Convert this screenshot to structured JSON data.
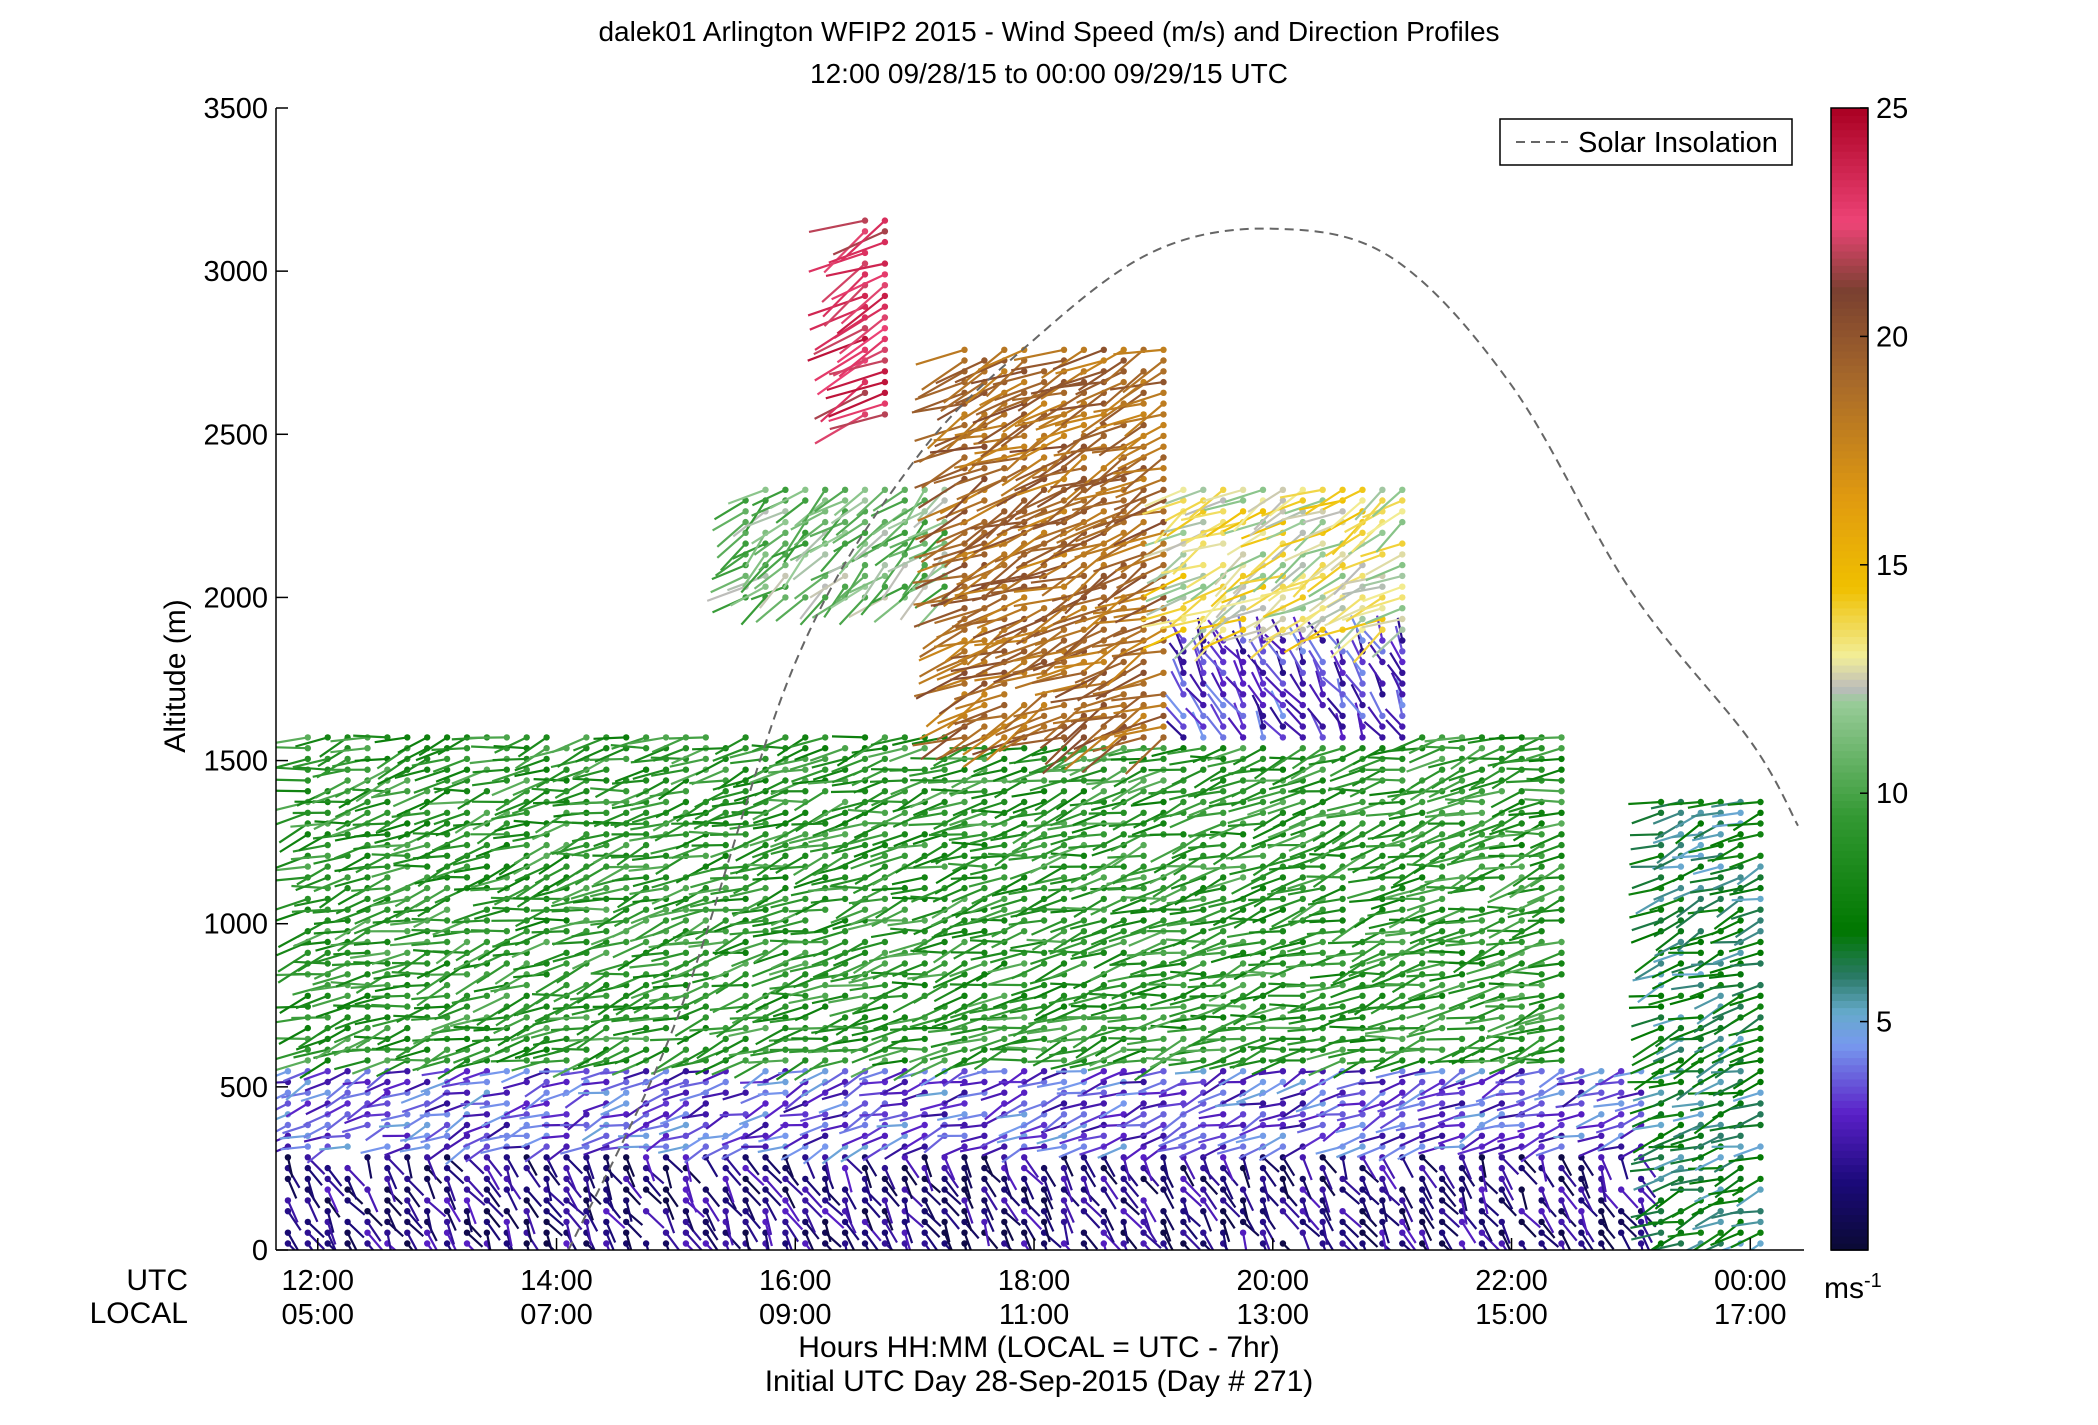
{
  "chart_data": {
    "type": "wind-barb profile",
    "title": "dalek01 Arlington WFIP2 2015 - Wind Speed (m/s) and Direction Profiles",
    "subtitle": "12:00 09/28/15 to 00:00 09/29/15  UTC",
    "ylabel": "Altitude (m)",
    "ylim": [
      0,
      3500
    ],
    "yticks": [
      "0",
      "500",
      "1000",
      "1500",
      "2000",
      "2500",
      "3000",
      "3500"
    ],
    "xlim_hours": [
      11.65,
      24.45
    ],
    "xticks": [
      {
        "hour": 12,
        "utc": "12:00",
        "local": "05:00"
      },
      {
        "hour": 14,
        "utc": "14:00",
        "local": "07:00"
      },
      {
        "hour": 16,
        "utc": "16:00",
        "local": "09:00"
      },
      {
        "hour": 18,
        "utc": "18:00",
        "local": "11:00"
      },
      {
        "hour": 20,
        "utc": "20:00",
        "local": "13:00"
      },
      {
        "hour": 22,
        "utc": "22:00",
        "local": "15:00"
      },
      {
        "hour": 24,
        "utc": "00:00",
        "local": "17:00"
      }
    ],
    "xrow_labels": {
      "utc": "UTC",
      "local": "LOCAL"
    },
    "xlabel": "Hours HH:MM  (LOCAL = UTC - 7hr)",
    "xlabel2": "Initial UTC Day 28-Sep-2015 (Day # 271)",
    "legend": {
      "label": "Solar Insolation",
      "placement": "top-right",
      "style": "dashed",
      "color": "#666666"
    },
    "colorbar": {
      "ticks": [
        "5",
        "10",
        "15",
        "20",
        "25"
      ],
      "unit_label": "ms",
      "unit_exponent": "-1",
      "range": [
        0,
        25
      ],
      "stops": [
        {
          "v": 0,
          "c": "#0a0a33"
        },
        {
          "v": 1.5,
          "c": "#1b0a7a"
        },
        {
          "v": 3,
          "c": "#5a20c8"
        },
        {
          "v": 4.5,
          "c": "#7799ee"
        },
        {
          "v": 5.2,
          "c": "#66aacc"
        },
        {
          "v": 6,
          "c": "#2a7a66"
        },
        {
          "v": 7,
          "c": "#007700"
        },
        {
          "v": 9.5,
          "c": "#339933"
        },
        {
          "v": 12,
          "c": "#99cc99"
        },
        {
          "v": 12.3,
          "c": "#bbbbbb"
        },
        {
          "v": 13,
          "c": "#f2ee99"
        },
        {
          "v": 14.5,
          "c": "#f0c000"
        },
        {
          "v": 16.5,
          "c": "#e09a10"
        },
        {
          "v": 19,
          "c": "#a86a2a"
        },
        {
          "v": 21,
          "c": "#7a4030"
        },
        {
          "v": 22.5,
          "c": "#ee4477"
        },
        {
          "v": 25,
          "c": "#aa0022"
        }
      ]
    },
    "solar_insolation_curve": {
      "hours": [
        14.1,
        15.0,
        16.0,
        17.0,
        18.0,
        19.0,
        20.0,
        21.0,
        22.0,
        23.0,
        24.0,
        24.4
      ],
      "altitude_m": [
        0,
        700,
        1800,
        2420,
        2790,
        3060,
        3130,
        3040,
        2650,
        2020,
        1560,
        1300
      ]
    },
    "regions": [
      {
        "name": "lowest layer",
        "hours": [
          11.7,
          24.2
        ],
        "altitude_m": [
          0,
          300
        ],
        "speed_m_s": 1.5,
        "direction_deg": 150
      },
      {
        "name": "lower mixed layer",
        "hours": [
          11.7,
          24.2
        ],
        "altitude_m": [
          300,
          550
        ],
        "speed_m_s": 3.5,
        "direction_deg": 250
      },
      {
        "name": "main flow",
        "hours": [
          11.8,
          22.5
        ],
        "altitude_m": [
          550,
          1600
        ],
        "speed_m_s": 9,
        "direction_deg": 255
      },
      {
        "name": "late-afternoon column",
        "hours": [
          23.2,
          24.1
        ],
        "altitude_m": [
          0,
          1400
        ],
        "speed_m_s": 6.5,
        "direction_deg": 250
      },
      {
        "name": "gust cluster",
        "hours": [
          15.5,
          17.5
        ],
        "altitude_m": [
          2000,
          2350
        ],
        "speed_m_s": 11,
        "direction_deg": 230
      },
      {
        "name": "upper jet",
        "hours": [
          17.3,
          19.1
        ],
        "altitude_m": [
          1550,
          2770
        ],
        "speed_m_s": 19,
        "direction_deg": 245
      },
      {
        "name": "upper high-speed stack",
        "hours": [
          16.5,
          16.9
        ],
        "altitude_m": [
          2550,
          3170
        ],
        "speed_m_s": 23,
        "direction_deg": 240
      },
      {
        "name": "afternoon weak layer",
        "hours": [
          19.1,
          21.1
        ],
        "altitude_m": [
          1550,
          1900
        ],
        "speed_m_s": 3,
        "direction_deg": 330
      },
      {
        "name": "afternoon upper",
        "hours": [
          19.1,
          21.1
        ],
        "altitude_m": [
          1900,
          2350
        ],
        "speed_m_s": 13,
        "direction_deg": 240
      }
    ]
  }
}
